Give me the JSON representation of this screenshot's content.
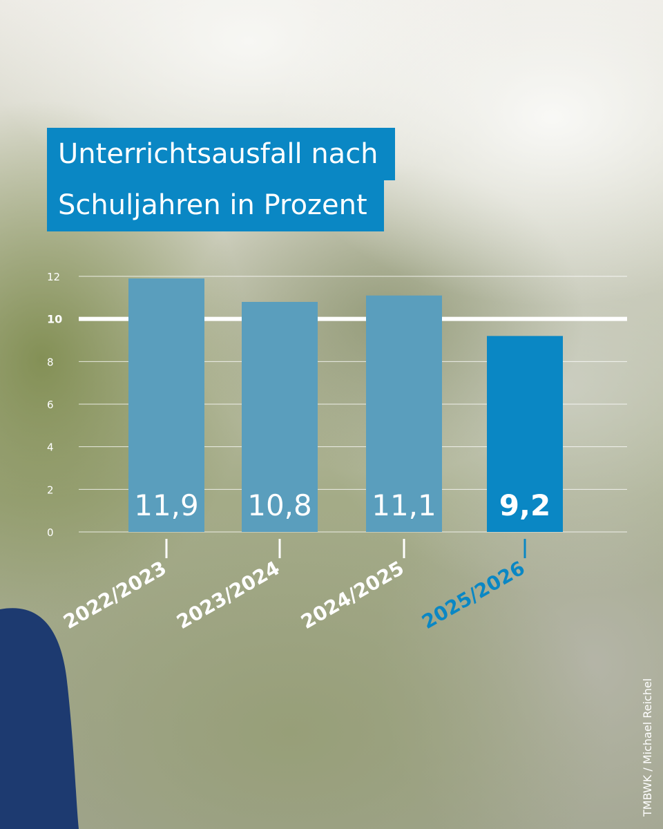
{
  "title": {
    "line1": "Unterrichtsausfall nach",
    "line2": "Schuljahren in Prozent"
  },
  "chart_data": {
    "type": "bar",
    "title": "Unterrichtsausfall nach Schuljahren in Prozent",
    "xlabel": "",
    "ylabel": "",
    "categories": [
      "2022/2023",
      "2023/2024",
      "2024/2025",
      "2025/2026"
    ],
    "values": [
      11.9,
      10.8,
      11.1,
      9.2
    ],
    "value_labels": [
      "11,9",
      "10,8",
      "11,1",
      "9,2"
    ],
    "highlight_index": 3,
    "ylim": [
      0,
      12
    ],
    "yticks": [
      0,
      2,
      4,
      6,
      8,
      10,
      12
    ],
    "reference_line": 10,
    "grid": true
  },
  "colors": {
    "bar": "#5a9ebd",
    "bar_highlight": "#0a87c4",
    "title_bg": "#0a87c4",
    "text": "#ffffff",
    "highlight_label": "#0a87c4"
  },
  "credit": "TMBWK / Michael Reichel"
}
